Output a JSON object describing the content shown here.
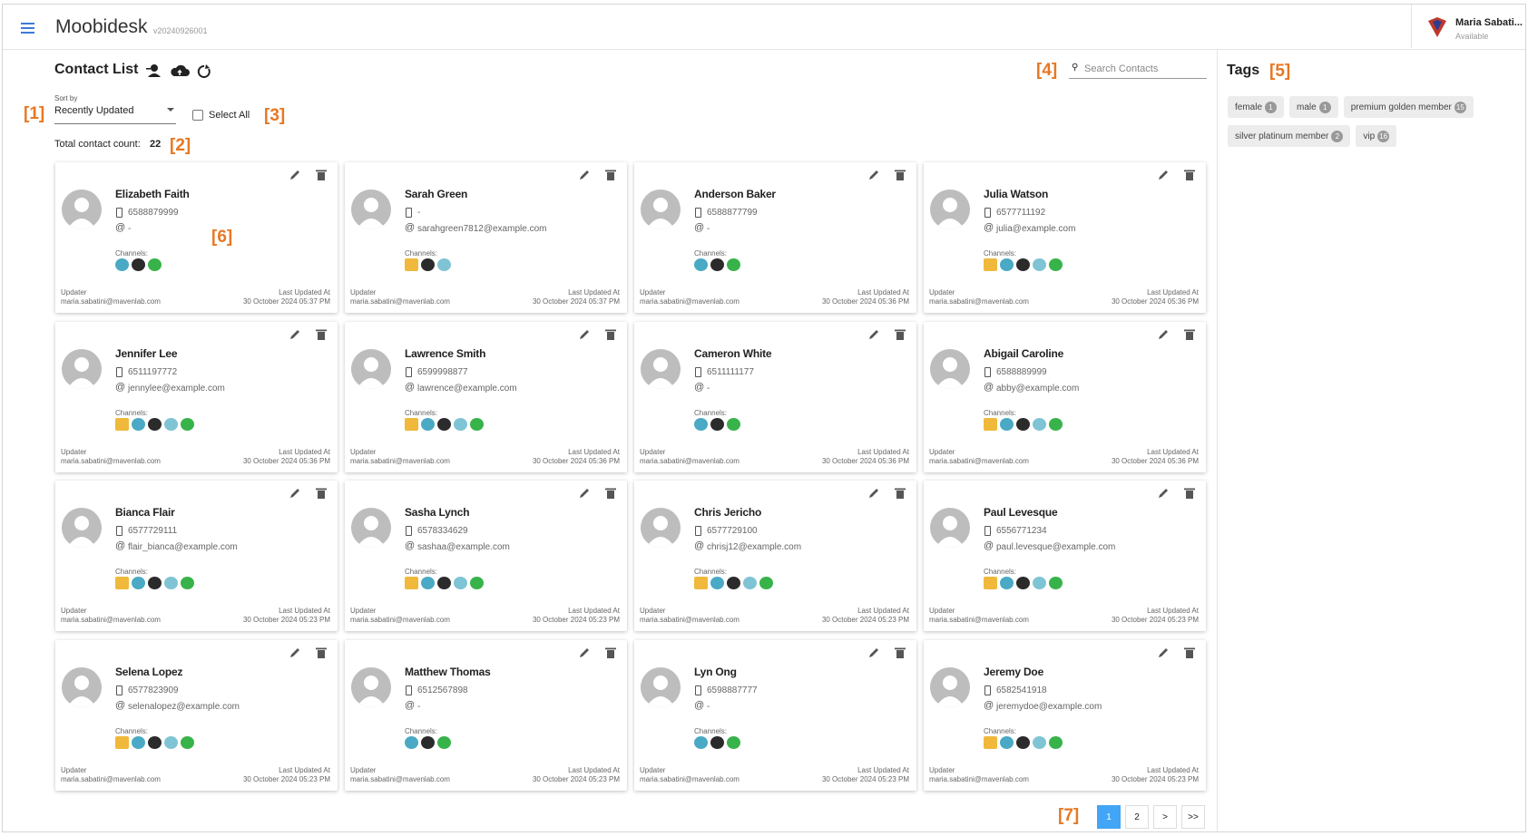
{
  "header": {
    "logo": "Moobidesk",
    "version": "v20240926001",
    "user": "Maria Sabati...",
    "status": "Available"
  },
  "toolbar": {
    "title": "Contact List",
    "sort_label": "Sort by",
    "sort_value": "Recently Updated",
    "select_all": "Select All",
    "count_label": "Total contact count:",
    "count": 22,
    "search": "Search Contacts"
  },
  "labels": {
    "channels": "Channels:",
    "updater": "Updater",
    "updated_at": "Last Updated At"
  },
  "contacts": [
    {
      "name": "Elizabeth Faith",
      "phone": "6588879999",
      "email": "-",
      "updater": "maria.sabatini@mavenlab.com",
      "updated": "30 October 2024 05:37 PM"
    },
    {
      "name": "Sarah Green",
      "phone": "-",
      "email": "sarahgreen7812@example.com",
      "updater": "maria.sabatini@mavenlab.com",
      "updated": "30 October 2024 05:37 PM"
    },
    {
      "name": "Anderson Baker",
      "phone": "6588877799",
      "email": "-",
      "updater": "maria.sabatini@mavenlab.com",
      "updated": "30 October 2024 05:36 PM"
    },
    {
      "name": "Julia Watson",
      "phone": "6577711192",
      "email": "julia@example.com",
      "updater": "maria.sabatini@mavenlab.com",
      "updated": "30 October 2024 05:36 PM"
    },
    {
      "name": "Jennifer Lee",
      "phone": "6511197772",
      "email": "jennylee@example.com",
      "updater": "maria.sabatini@mavenlab.com",
      "updated": "30 October 2024 05:36 PM"
    },
    {
      "name": "Lawrence Smith",
      "phone": "6599998877",
      "email": "lawrence@example.com",
      "updater": "maria.sabatini@mavenlab.com",
      "updated": "30 October 2024 05:36 PM"
    },
    {
      "name": "Cameron White",
      "phone": "6511111177",
      "email": "-",
      "updater": "maria.sabatini@mavenlab.com",
      "updated": "30 October 2024 05:36 PM"
    },
    {
      "name": "Abigail Caroline",
      "phone": "6588889999",
      "email": "abby@example.com",
      "updater": "maria.sabatini@mavenlab.com",
      "updated": "30 October 2024 05:36 PM"
    },
    {
      "name": "Bianca Flair",
      "phone": "6577729111",
      "email": "flair_bianca@example.com",
      "updater": "maria.sabatini@mavenlab.com",
      "updated": "30 October 2024 05:23 PM"
    },
    {
      "name": "Sasha Lynch",
      "phone": "6578334629",
      "email": "sashaa@example.com",
      "updater": "maria.sabatini@mavenlab.com",
      "updated": "30 October 2024 05:23 PM"
    },
    {
      "name": "Chris Jericho",
      "phone": "6577729100",
      "email": "chrisj12@example.com",
      "updater": "maria.sabatini@mavenlab.com",
      "updated": "30 October 2024 05:23 PM"
    },
    {
      "name": "Paul Levesque",
      "phone": "6556771234",
      "email": "paul.levesque@example.com",
      "updater": "maria.sabatini@mavenlab.com",
      "updated": "30 October 2024 05:23 PM"
    },
    {
      "name": "Selena Lopez",
      "phone": "6577823909",
      "email": "selenalopez@example.com",
      "updater": "maria.sabatini@mavenlab.com",
      "updated": "30 October 2024 05:23 PM"
    },
    {
      "name": "Matthew Thomas",
      "phone": "6512567898",
      "email": "-",
      "updater": "maria.sabatini@mavenlab.com",
      "updated": "30 October 2024 05:23 PM"
    },
    {
      "name": "Lyn Ong",
      "phone": "6598887777",
      "email": "-",
      "updater": "maria.sabatini@mavenlab.com",
      "updated": "30 October 2024 05:23 PM"
    },
    {
      "name": "Jeremy Doe",
      "phone": "6582541918",
      "email": "jeremydoe@example.com",
      "updater": "maria.sabatini@mavenlab.com",
      "updated": "30 October 2024 05:23 PM"
    }
  ],
  "tags": {
    "title": "Tags",
    "items": [
      {
        "name": "female",
        "count": 1
      },
      {
        "name": "male",
        "count": 1
      },
      {
        "name": "premium golden member",
        "count": 15
      },
      {
        "name": "silver platinum member",
        "count": 2
      },
      {
        "name": "vip",
        "count": 16
      }
    ]
  },
  "pagination": {
    "pages": [
      1,
      2
    ],
    "next": ">",
    "last": ">>"
  },
  "annotations": [
    "[1]",
    "[2]",
    "[3]",
    "[4]",
    "[5]",
    "[6]",
    "[7]"
  ]
}
